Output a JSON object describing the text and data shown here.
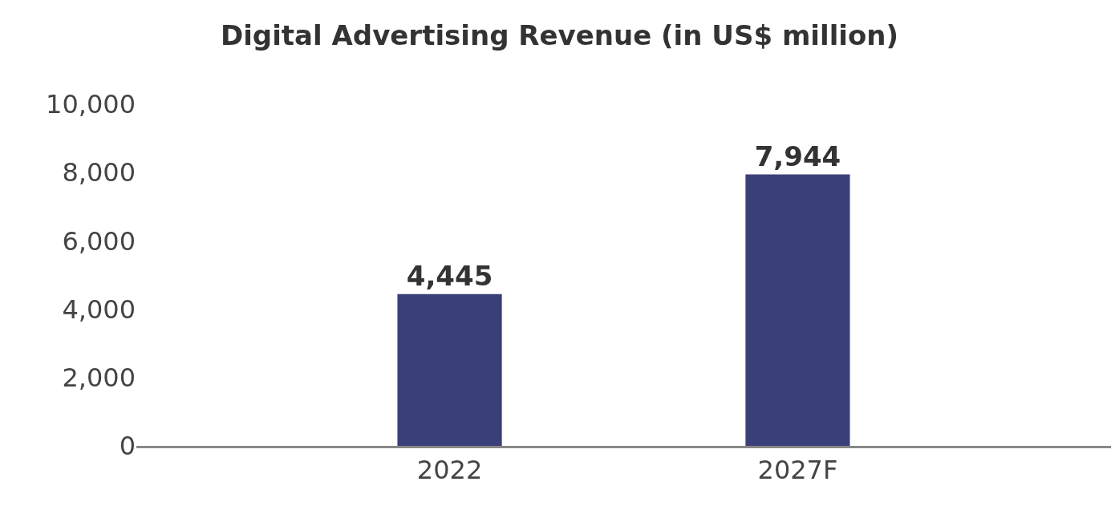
{
  "chart_data": {
    "type": "bar",
    "title": "Digital Advertising Revenue (in US$ million)",
    "categories": [
      "2022",
      "2027F"
    ],
    "values": [
      4445,
      7944
    ],
    "color": "#3a3f7a",
    "ylim": [
      0,
      10000
    ],
    "yticks": [
      0,
      {
        "value": 2000,
        "label": "2,000"
      },
      {
        "value": 4000,
        "label": "4,000"
      },
      {
        "value": 6000,
        "label": "6,000"
      },
      {
        "value": 8000,
        "label": "8,000"
      },
      {
        "value": 10000,
        "label": "10,000"
      }
    ],
    "value_labels": [
      "4,445",
      "7,944"
    ],
    "grid": false,
    "legend": false
  }
}
